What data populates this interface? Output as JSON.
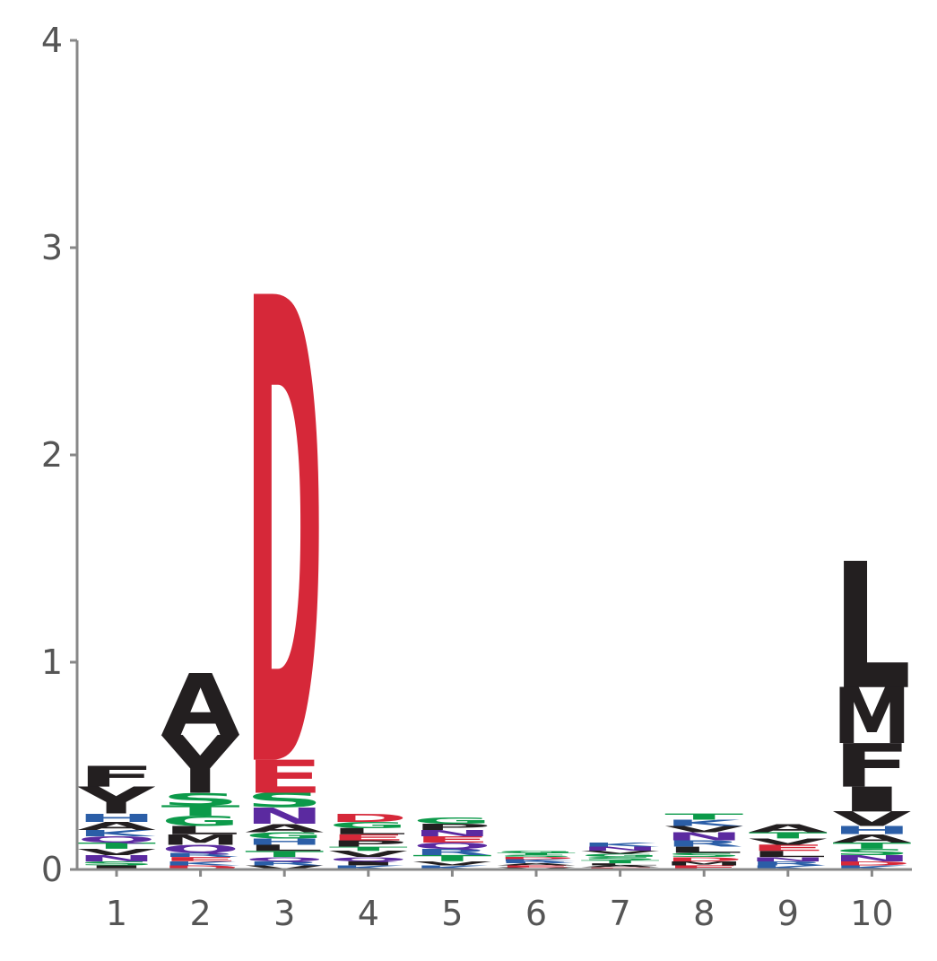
{
  "chart_data": {
    "type": "sequence-logo",
    "title": "",
    "xlabel": "",
    "ylabel": "",
    "ylim": [
      0,
      4
    ],
    "yticks": [
      "0",
      "1",
      "2",
      "3",
      "4"
    ],
    "positions": [
      "1",
      "2",
      "3",
      "4",
      "5",
      "6",
      "7",
      "8",
      "9",
      "10"
    ],
    "grid": false,
    "colors": {
      "hydrophobic": "#231f20",
      "acidic": "#d62839",
      "polar": "#0c9a4a",
      "basic": "#2b5ea7",
      "amide": "#5b2aa0",
      "axis": "#888888",
      "tick_text": "#555555"
    },
    "stacks": [
      {
        "position": "1",
        "letters": [
          {
            "aa": "I",
            "value": 0.02
          },
          {
            "aa": "S",
            "value": 0.02
          },
          {
            "aa": "N",
            "value": 0.03
          },
          {
            "aa": "V",
            "value": 0.03
          },
          {
            "aa": "T",
            "value": 0.03
          },
          {
            "aa": "Q",
            "value": 0.03
          },
          {
            "aa": "K",
            "value": 0.03
          },
          {
            "aa": "A",
            "value": 0.04
          },
          {
            "aa": "H",
            "value": 0.04
          },
          {
            "aa": "Y",
            "value": 0.13
          },
          {
            "aa": "F",
            "value": 0.1
          }
        ]
      },
      {
        "position": "2",
        "letters": [
          {
            "aa": "D",
            "value": 0.02
          },
          {
            "aa": "K",
            "value": 0.02
          },
          {
            "aa": "E",
            "value": 0.02
          },
          {
            "aa": "R",
            "value": 0.02
          },
          {
            "aa": "Q",
            "value": 0.04
          },
          {
            "aa": "M",
            "value": 0.05
          },
          {
            "aa": "L",
            "value": 0.04
          },
          {
            "aa": "G",
            "value": 0.05
          },
          {
            "aa": "T",
            "value": 0.05
          },
          {
            "aa": "S",
            "value": 0.06
          },
          {
            "aa": "Y",
            "value": 0.28
          },
          {
            "aa": "A",
            "value": 0.3
          }
        ]
      },
      {
        "position": "3",
        "letters": [
          {
            "aa": "V",
            "value": 0.02
          },
          {
            "aa": "R",
            "value": 0.02
          },
          {
            "aa": "Q",
            "value": 0.02
          },
          {
            "aa": "T",
            "value": 0.03
          },
          {
            "aa": "L",
            "value": 0.03
          },
          {
            "aa": "H",
            "value": 0.03
          },
          {
            "aa": "G",
            "value": 0.03
          },
          {
            "aa": "A",
            "value": 0.04
          },
          {
            "aa": "N",
            "value": 0.08
          },
          {
            "aa": "S",
            "value": 0.07
          },
          {
            "aa": "E",
            "value": 0.16
          },
          {
            "aa": "D",
            "value": 2.25
          }
        ]
      },
      {
        "position": "4",
        "letters": [
          {
            "aa": "K",
            "value": 0.02
          },
          {
            "aa": "I",
            "value": 0.02
          },
          {
            "aa": "Q",
            "value": 0.02
          },
          {
            "aa": "V",
            "value": 0.03
          },
          {
            "aa": "T",
            "value": 0.02
          },
          {
            "aa": "P",
            "value": 0.03
          },
          {
            "aa": "E",
            "value": 0.03
          },
          {
            "aa": "L",
            "value": 0.03
          },
          {
            "aa": "G",
            "value": 0.03
          },
          {
            "aa": "D",
            "value": 0.04
          }
        ]
      },
      {
        "position": "5",
        "letters": [
          {
            "aa": "K",
            "value": 0.02
          },
          {
            "aa": "V",
            "value": 0.02
          },
          {
            "aa": "T",
            "value": 0.03
          },
          {
            "aa": "R",
            "value": 0.03
          },
          {
            "aa": "Q",
            "value": 0.03
          },
          {
            "aa": "E",
            "value": 0.03
          },
          {
            "aa": "N",
            "value": 0.03
          },
          {
            "aa": "P",
            "value": 0.03
          },
          {
            "aa": "G",
            "value": 0.03
          }
        ]
      },
      {
        "position": "6",
        "letters": [
          {
            "aa": "V",
            "value": 0.01
          },
          {
            "aa": "E",
            "value": 0.01
          },
          {
            "aa": "A",
            "value": 0.01
          },
          {
            "aa": "R",
            "value": 0.01
          },
          {
            "aa": "K",
            "value": 0.01
          },
          {
            "aa": "D",
            "value": 0.01
          },
          {
            "aa": "S",
            "value": 0.01
          },
          {
            "aa": "T",
            "value": 0.01
          },
          {
            "aa": "G",
            "value": 0.01
          }
        ]
      },
      {
        "position": "7",
        "letters": [
          {
            "aa": "E",
            "value": 0.01
          },
          {
            "aa": "A",
            "value": 0.01
          },
          {
            "aa": "L",
            "value": 0.01
          },
          {
            "aa": "T",
            "value": 0.015
          },
          {
            "aa": "S",
            "value": 0.015
          },
          {
            "aa": "G",
            "value": 0.015
          },
          {
            "aa": "V",
            "value": 0.015
          },
          {
            "aa": "N",
            "value": 0.02
          },
          {
            "aa": "K",
            "value": 0.02
          }
        ]
      },
      {
        "position": "8",
        "letters": [
          {
            "aa": "E",
            "value": 0.02
          },
          {
            "aa": "M",
            "value": 0.02
          },
          {
            "aa": "D",
            "value": 0.02
          },
          {
            "aa": "S",
            "value": 0.02
          },
          {
            "aa": "L",
            "value": 0.03
          },
          {
            "aa": "R",
            "value": 0.03
          },
          {
            "aa": "N",
            "value": 0.04
          },
          {
            "aa": "V",
            "value": 0.03
          },
          {
            "aa": "K",
            "value": 0.03
          },
          {
            "aa": "T",
            "value": 0.03
          }
        ]
      },
      {
        "position": "9",
        "letters": [
          {
            "aa": "K",
            "value": 0.02
          },
          {
            "aa": "R",
            "value": 0.02
          },
          {
            "aa": "N",
            "value": 0.02
          },
          {
            "aa": "L",
            "value": 0.03
          },
          {
            "aa": "E",
            "value": 0.03
          },
          {
            "aa": "V",
            "value": 0.03
          },
          {
            "aa": "T",
            "value": 0.03
          },
          {
            "aa": "A",
            "value": 0.04
          }
        ]
      },
      {
        "position": "10",
        "letters": [
          {
            "aa": "K",
            "value": 0.02
          },
          {
            "aa": "D",
            "value": 0.02
          },
          {
            "aa": "N",
            "value": 0.03
          },
          {
            "aa": "S",
            "value": 0.03
          },
          {
            "aa": "T",
            "value": 0.03
          },
          {
            "aa": "A",
            "value": 0.04
          },
          {
            "aa": "H",
            "value": 0.04
          },
          {
            "aa": "V",
            "value": 0.07
          },
          {
            "aa": "I",
            "value": 0.12
          },
          {
            "aa": "F",
            "value": 0.21
          },
          {
            "aa": "M",
            "value": 0.27
          },
          {
            "aa": "L",
            "value": 0.61
          }
        ]
      }
    ]
  }
}
